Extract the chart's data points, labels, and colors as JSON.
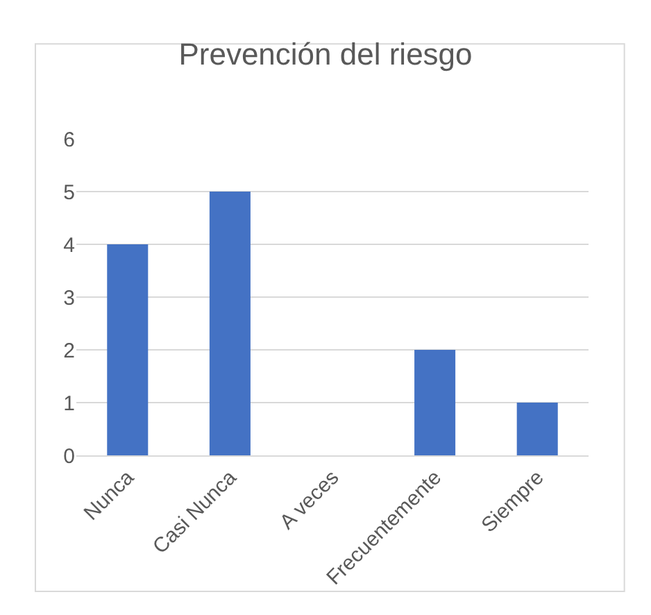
{
  "chart_data": {
    "type": "bar",
    "title": "Prevención del riesgo",
    "categories": [
      "Nunca",
      "Casi Nunca",
      "A veces",
      "Frecuentemente",
      "Siempre"
    ],
    "values": [
      4,
      5,
      0,
      2,
      1
    ],
    "color": "#4472c4",
    "ylim": [
      0,
      6
    ],
    "yticks": [
      0,
      1,
      2,
      3,
      4,
      5,
      6
    ],
    "grid": "y"
  }
}
